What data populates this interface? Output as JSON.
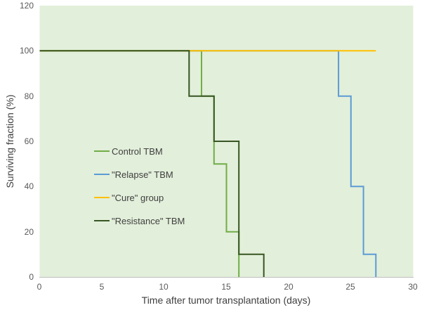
{
  "chart_data": {
    "type": "line",
    "subtype": "kaplan-meier-step",
    "title": "",
    "xlabel": "Time after tumor transplantation (days)",
    "ylabel": "Surviving fraction (%)",
    "x_ticks": [
      0,
      5,
      10,
      15,
      20,
      25,
      30
    ],
    "y_ticks_top_to_bottom": [
      120,
      100,
      80,
      60,
      40,
      20,
      0
    ],
    "xlim": [
      0,
      30
    ],
    "ylim": [
      0,
      120
    ],
    "grid": "off",
    "legend_position": "inside-center-left",
    "plot_bg": "#E2EFDA",
    "axis_line_color": "#BFBFBF",
    "series": [
      {
        "name": "Control TBM",
        "color": "#70AD47",
        "points": [
          [
            0,
            100
          ],
          [
            13,
            100
          ],
          [
            13,
            80
          ],
          [
            14,
            80
          ],
          [
            14,
            50
          ],
          [
            15,
            50
          ],
          [
            15,
            20
          ],
          [
            16,
            20
          ],
          [
            16,
            0
          ]
        ]
      },
      {
        "name": "\"Relapse\" TBM",
        "color": "#5B9BD5",
        "points": [
          [
            0,
            100
          ],
          [
            24,
            100
          ],
          [
            24,
            80
          ],
          [
            25,
            80
          ],
          [
            25,
            40
          ],
          [
            26,
            40
          ],
          [
            26,
            10
          ],
          [
            27,
            10
          ],
          [
            27,
            0
          ]
        ]
      },
      {
        "name": "\"Cure\" group",
        "color": "#FFC000",
        "points": [
          [
            0,
            100
          ],
          [
            27,
            100
          ]
        ]
      },
      {
        "name": "\"Resistance\" TBM",
        "color": "#375623",
        "points": [
          [
            0,
            100
          ],
          [
            12,
            100
          ],
          [
            12,
            80
          ],
          [
            14,
            80
          ],
          [
            14,
            60
          ],
          [
            16,
            60
          ],
          [
            16,
            10
          ],
          [
            18,
            10
          ],
          [
            18,
            0
          ]
        ]
      }
    ]
  }
}
